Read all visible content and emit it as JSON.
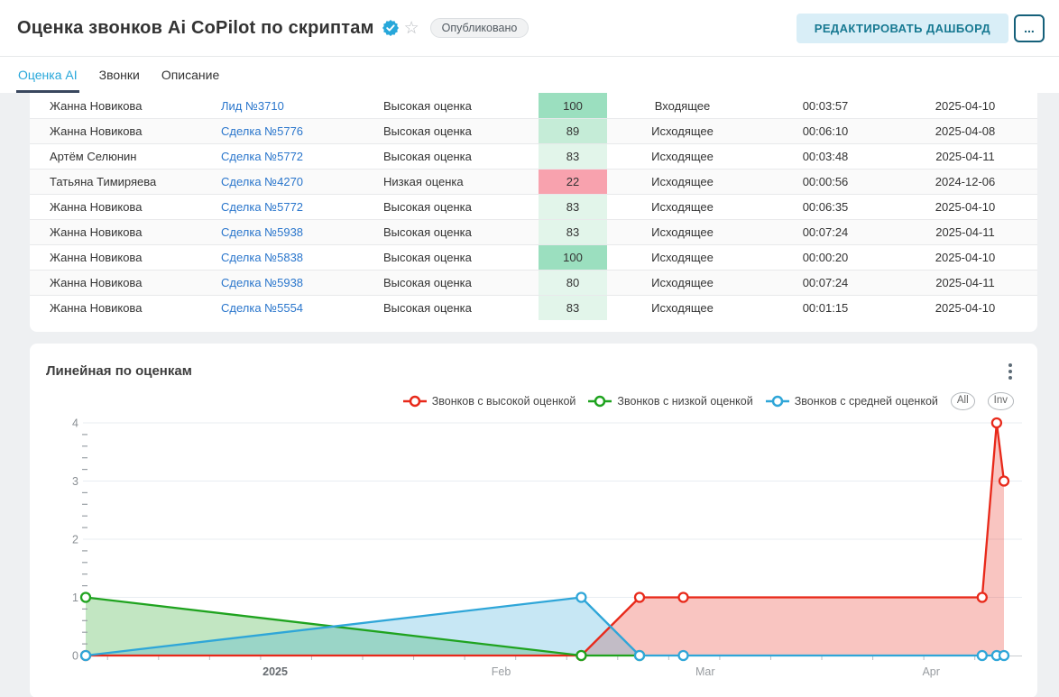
{
  "header": {
    "title": "Оценка звонков Ai CoPilot по скриптам",
    "verified_icon": "check-badge-icon",
    "star_icon": "star-icon",
    "published_badge": "Опубликовано",
    "edit_button": "РЕДАКТИРОВАТЬ ДАШБОРД",
    "more_button": "..."
  },
  "tabs": [
    {
      "label": "Оценка AI",
      "active": true
    },
    {
      "label": "Звонки",
      "active": false
    },
    {
      "label": "Описание",
      "active": false
    }
  ],
  "table": {
    "rows": [
      {
        "name": "Жанна Новикова",
        "link": "Лид №3710",
        "assessment": "Высокая оценка",
        "score": "100",
        "score_bg": "#9bdfbf",
        "direction": "Входящее",
        "duration": "00:03:57",
        "date": "2025-04-10"
      },
      {
        "name": "Жанна Новикова",
        "link": "Сделка №5776",
        "assessment": "Высокая оценка",
        "score": "89",
        "score_bg": "#c5ecd7",
        "direction": "Исходящее",
        "duration": "00:06:10",
        "date": "2025-04-08"
      },
      {
        "name": "Артём Селюнин",
        "link": "Сделка №5772",
        "assessment": "Высокая оценка",
        "score": "83",
        "score_bg": "#e2f5ea",
        "direction": "Исходящее",
        "duration": "00:03:48",
        "date": "2025-04-11"
      },
      {
        "name": "Татьяна Тимиряева",
        "link": "Сделка №4270",
        "assessment": "Низкая оценка",
        "score": "22",
        "score_bg": "#f8a2ae",
        "direction": "Исходящее",
        "duration": "00:00:56",
        "date": "2024-12-06"
      },
      {
        "name": "Жанна Новикова",
        "link": "Сделка №5772",
        "assessment": "Высокая оценка",
        "score": "83",
        "score_bg": "#e2f5ea",
        "direction": "Исходящее",
        "duration": "00:06:35",
        "date": "2025-04-10"
      },
      {
        "name": "Жанна Новикова",
        "link": "Сделка №5938",
        "assessment": "Высокая оценка",
        "score": "83",
        "score_bg": "#e2f5ea",
        "direction": "Исходящее",
        "duration": "00:07:24",
        "date": "2025-04-11"
      },
      {
        "name": "Жанна Новикова",
        "link": "Сделка №5838",
        "assessment": "Высокая оценка",
        "score": "100",
        "score_bg": "#9bdfbf",
        "direction": "Исходящее",
        "duration": "00:00:20",
        "date": "2025-04-10"
      },
      {
        "name": "Жанна Новикова",
        "link": "Сделка №5938",
        "assessment": "Высокая оценка",
        "score": "80",
        "score_bg": "#e4f6ec",
        "direction": "Исходящее",
        "duration": "00:07:24",
        "date": "2025-04-11"
      },
      {
        "name": "Жанна Новикова",
        "link": "Сделка №5554",
        "assessment": "Высокая оценка",
        "score": "83",
        "score_bg": "#e2f5ea",
        "direction": "Исходящее",
        "duration": "00:01:15",
        "date": "2025-04-10"
      }
    ]
  },
  "chart": {
    "title": "Линейная по оценкам",
    "menu_icon": "kebab-menu-icon",
    "buttons": [
      "All",
      "Inv"
    ]
  },
  "chart_data": {
    "type": "line",
    "title": "Линейная по оценкам",
    "area": true,
    "x_unit": "date",
    "x": [
      "2024-12-06",
      "2025-02-12",
      "2025-02-20",
      "2025-02-26",
      "2025-04-08",
      "2025-04-10",
      "2025-04-11"
    ],
    "series": [
      {
        "name": "Звонков с высокой оценкой",
        "color": "#e8291a",
        "fill": "#e8291a",
        "values": [
          0,
          0,
          1,
          1,
          1,
          4,
          3
        ]
      },
      {
        "name": "Звонков с низкой оценкой",
        "color": "#1fa31f",
        "fill": "#1fa31f",
        "values": [
          1,
          0,
          0,
          null,
          null,
          null,
          null
        ]
      },
      {
        "name": "Звонков с средней оценкой",
        "color": "#2fa6d8",
        "fill": "#2fa6d8",
        "values": [
          0,
          1,
          0,
          0,
          0,
          0,
          0
        ]
      }
    ],
    "ylim": [
      0,
      4
    ],
    "yticks": [
      0,
      1,
      2,
      3,
      4
    ],
    "y_minor_step": 0.2,
    "xticks": [
      {
        "label": "2025",
        "date": "2025-01-01",
        "emphasis": true
      },
      {
        "label": "Feb",
        "date": "2025-02-01",
        "emphasis": false
      },
      {
        "label": "Mar",
        "date": "2025-03-01",
        "emphasis": false
      },
      {
        "label": "Apr",
        "date": "2025-04-01",
        "emphasis": false
      }
    ],
    "x_minor_tick_start": "2024-12-09",
    "x_minor_tick_days": 7,
    "grid": true,
    "legend_position": "top-right",
    "colors": {
      "grid": "#e9edf2",
      "axis": "#c9ccd0",
      "tick": "#b9bec4",
      "y_label": "#8a8f94",
      "x_label": "#999da1",
      "x_label_year": "#666b70"
    }
  }
}
